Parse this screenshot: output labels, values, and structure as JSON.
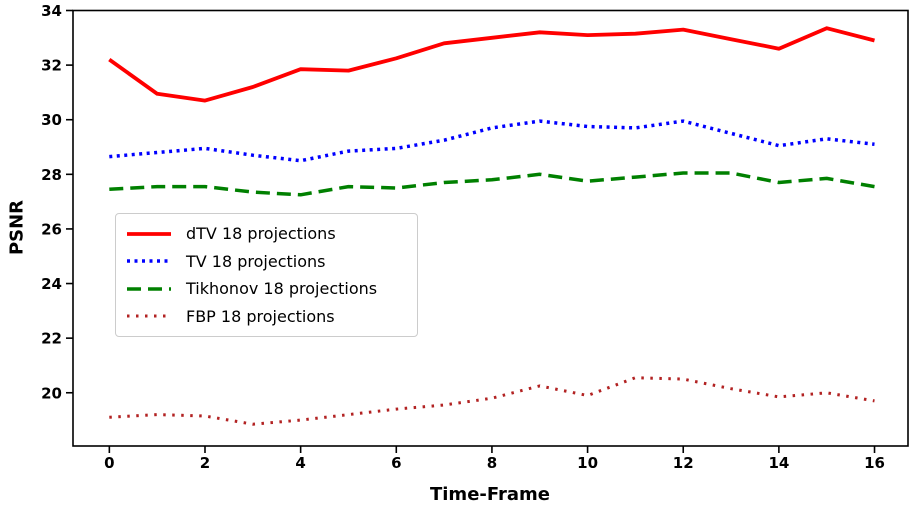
{
  "chart_data": {
    "type": "line",
    "title": "",
    "xlabel": "Time-Frame",
    "ylabel": "PSNR",
    "grid": false,
    "legend_position": "upper-left-inside",
    "xlim": [
      -0.76,
      16.7
    ],
    "ylim": [
      18.05,
      34.0
    ],
    "x_ticks": [
      0,
      2,
      4,
      6,
      8,
      10,
      12,
      14,
      16
    ],
    "y_ticks": [
      20,
      22,
      24,
      26,
      28,
      30,
      32,
      34
    ],
    "x": [
      0,
      1,
      2,
      3,
      4,
      5,
      6,
      7,
      8,
      9,
      10,
      11,
      12,
      13,
      14,
      15,
      16
    ],
    "series": [
      {
        "name": "dTV 18 projections",
        "color": "#ff0000",
        "style": "solid",
        "values": [
          32.2,
          30.95,
          30.7,
          31.2,
          31.85,
          31.8,
          32.25,
          32.8,
          33.0,
          33.2,
          33.1,
          33.15,
          33.3,
          32.95,
          32.6,
          33.35,
          32.9
        ]
      },
      {
        "name": "TV 18 projections",
        "color": "#0000ff",
        "style": "dotted",
        "values": [
          28.65,
          28.8,
          28.95,
          28.7,
          28.5,
          28.85,
          28.95,
          29.25,
          29.7,
          29.95,
          29.75,
          29.7,
          29.95,
          29.5,
          29.05,
          29.3,
          29.1
        ]
      },
      {
        "name": "Tikhonov 18 projections",
        "color": "#008000",
        "style": "dashed",
        "values": [
          27.45,
          27.55,
          27.55,
          27.35,
          27.25,
          27.55,
          27.5,
          27.7,
          27.8,
          28.0,
          27.75,
          27.9,
          28.05,
          28.05,
          27.7,
          27.85,
          27.55
        ]
      },
      {
        "name": "FBP 18 projections",
        "color": "#b22222",
        "style": "dotted-fine",
        "values": [
          19.1,
          19.2,
          19.15,
          18.85,
          19.0,
          19.2,
          19.4,
          19.55,
          19.8,
          20.25,
          19.9,
          20.55,
          20.5,
          20.15,
          19.85,
          20.0,
          19.7
        ]
      }
    ],
    "axis_color": "#000000",
    "legend_border_color": "#cccccc"
  }
}
